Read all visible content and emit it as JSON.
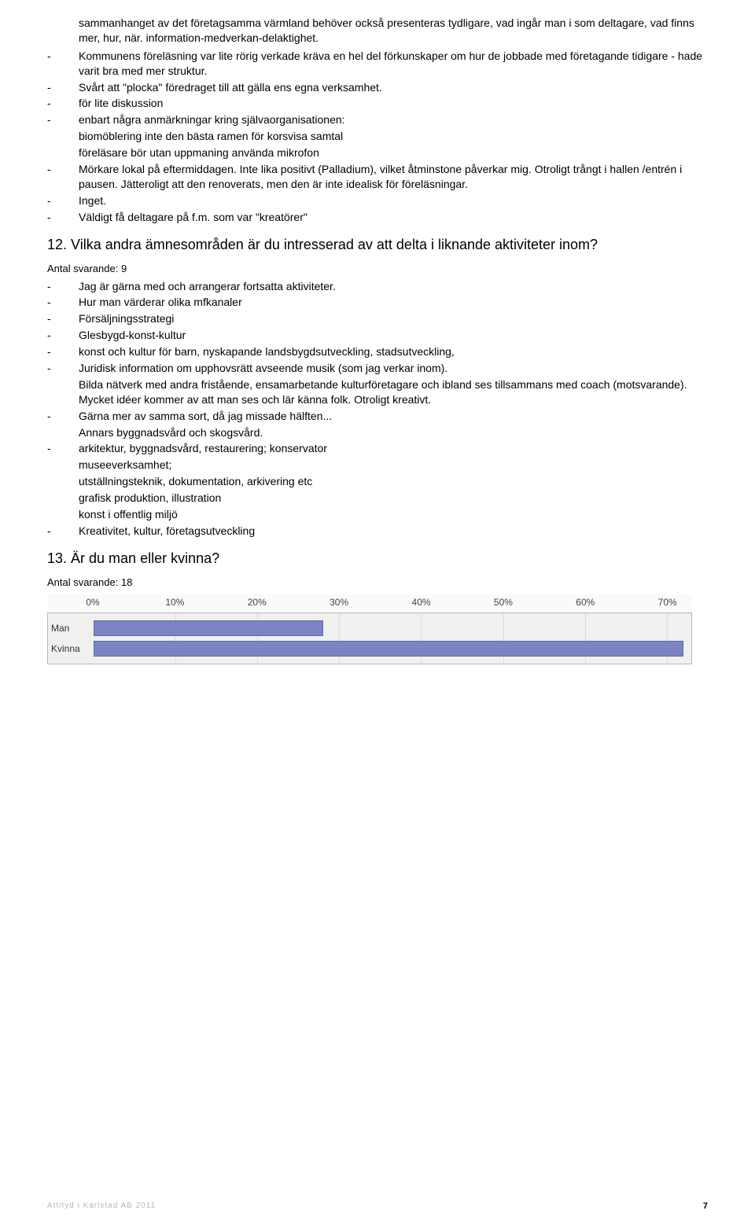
{
  "intro_continuation": "sammanhanget av det företagsamma värmland behöver också presenteras tydligare, vad ingår man i som deltagare, vad finns mer, hur, när. information-medverkan-delaktighet.",
  "list1": [
    "Kommunens föreläsning var lite rörig verkade kräva en hel del förkunskaper om hur de jobbade med företagande tidigare - hade varit bra med mer struktur.",
    "Svårt att \"plocka\" föredraget till att gälla ens egna verksamhet.",
    "för lite diskussion",
    "enbart några anmärkningar kring självaorganisationen:",
    "Mörkare lokal på eftermiddagen. Inte lika positivt (Palladium), vilket åtminstone påverkar mig. Otroligt trångt i hallen /entrén i pausen. Jätteroligt att den renoverats, men den är inte idealisk för föreläsningar.",
    "Inget.",
    "Väldigt få deltagare på f.m. som var \"kreatörer\""
  ],
  "list1_sub": [
    "biomöblering inte den bästa ramen för korsvisa samtal",
    "föreläsare bör utan uppmaning använda mikrofon"
  ],
  "q12": {
    "title": "12. Vilka andra ämnesområden är du intresserad av att delta i liknande aktiviteter inom?",
    "antal": "Antal svarande: 9",
    "items": [
      "Jag är gärna med och arrangerar fortsatta aktiviteter.",
      "Hur man värderar olika mfkanaler",
      "Försäljningsstrategi",
      "Glesbygd-konst-kultur",
      "konst och kultur för barn, nyskapande landsbygdsutveckling, stadsutveckling,",
      "Juridisk information om upphovsrätt avseende musik (som jag verkar inom).",
      "Gärna mer av samma sort, då jag missade hälften...",
      "arkitektur, byggnadsvård, restaurering; konservator",
      "Kreativitet, kultur, företagsutveckling"
    ],
    "sub_after_5": "Bilda nätverk med andra fristående, ensamarbetande kulturföretagare och ibland ses tillsammans med coach (motsvarande). Mycket idéer kommer av att man ses och lär känna folk. Otroligt kreativt.",
    "sub_after_6": "Annars byggnadsvård och skogsvård.",
    "sub_after_7": [
      "museeverksamhet;",
      "utställningsteknik, dokumentation, arkivering etc",
      "grafisk produktion, illustration",
      "konst i offentlig miljö"
    ]
  },
  "q13": {
    "title": "13. Är du man eller kvinna?",
    "antal": "Antal svarande: 18",
    "chart": {
      "type": "bar-horizontal",
      "x_ticks": [
        0,
        10,
        20,
        30,
        40,
        50,
        60,
        70
      ],
      "x_max_visible": 73,
      "categories": [
        "Man",
        "Kvinna"
      ],
      "values": [
        28,
        72
      ],
      "bar_color": "#7b84c4",
      "bar_border": "#6068a8",
      "background": "#f0f0ee",
      "grid_color": "#dcdcda",
      "axis_font": 12,
      "label_font": 12,
      "label_area_width": 58
    }
  },
  "footer": {
    "left": "Attityd i Karlstad AB 2011",
    "page": "7"
  }
}
